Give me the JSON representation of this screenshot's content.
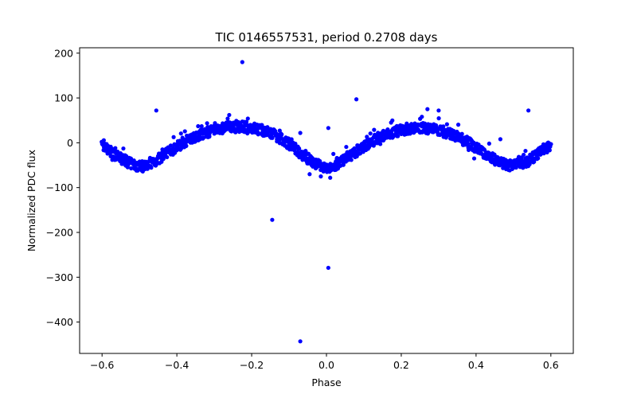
{
  "chart_data": {
    "type": "scatter",
    "title": "TIC 0146557531, period 0.2708 days",
    "xlabel": "Phase",
    "ylabel": "Normalized PDC flux",
    "xlim": [
      -0.66,
      0.66
    ],
    "ylim": [
      -470,
      212
    ],
    "xticks": [
      -0.6,
      -0.4,
      -0.2,
      0.0,
      0.2,
      0.4,
      0.6
    ],
    "xtick_labels": [
      "−0.6",
      "−0.4",
      "−0.2",
      "0.0",
      "0.2",
      "0.4",
      "0.6"
    ],
    "yticks": [
      -400,
      -300,
      -200,
      -100,
      0,
      100,
      200
    ],
    "ytick_labels": [
      "−400",
      "−300",
      "−200",
      "−100",
      "0",
      "100",
      "200"
    ],
    "grid": false,
    "marker_color": "#0000ff",
    "series": [
      {
        "curve_x": [
          -0.6,
          -0.56,
          -0.52,
          -0.5,
          -0.46,
          -0.42,
          -0.38,
          -0.34,
          -0.3,
          -0.26,
          -0.22,
          -0.18,
          -0.14,
          -0.1,
          -0.06,
          -0.02,
          0.0,
          0.03,
          0.06,
          0.1,
          0.14,
          0.18,
          0.22,
          0.26,
          0.3,
          0.34,
          0.38,
          0.42,
          0.46,
          0.5,
          0.54,
          0.58,
          0.6
        ],
        "curve_y": [
          -8,
          -30,
          -48,
          -52,
          -42,
          -20,
          2,
          18,
          28,
          35,
          36,
          30,
          18,
          -2,
          -30,
          -50,
          -55,
          -48,
          -30,
          -8,
          12,
          24,
          32,
          34,
          28,
          18,
          0,
          -22,
          -42,
          -52,
          -40,
          -15,
          -5
        ],
        "spread": 12,
        "outliers": [
          {
            "x": -0.225,
            "y": 180
          },
          {
            "x": -0.455,
            "y": 72
          },
          {
            "x": 0.08,
            "y": 97
          },
          {
            "x": 0.54,
            "y": 72
          },
          {
            "x": 0.005,
            "y": 33
          },
          {
            "x": -0.145,
            "y": -172
          },
          {
            "x": 0.005,
            "y": -279
          },
          {
            "x": -0.07,
            "y": -443
          },
          {
            "x": -0.07,
            "y": 22
          },
          {
            "x": 0.395,
            "y": -35
          },
          {
            "x": 0.465,
            "y": 8
          },
          {
            "x": -0.015,
            "y": -75
          },
          {
            "x": 0.01,
            "y": -78
          },
          {
            "x": -0.045,
            "y": -70
          },
          {
            "x": 0.3,
            "y": 72
          },
          {
            "x": 0.27,
            "y": 75
          },
          {
            "x": -0.26,
            "y": 62
          }
        ]
      }
    ]
  }
}
